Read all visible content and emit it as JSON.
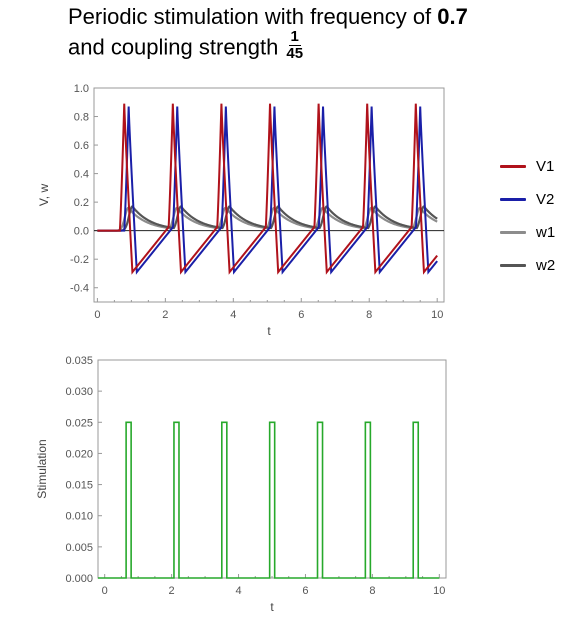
{
  "title": {
    "line1_prefix": "Periodic stimulation with frequency of",
    "line1_value": "0.7",
    "line2_prefix": "and coupling strength",
    "frac_num": "1",
    "frac_den": "45"
  },
  "colors": {
    "V1": "#b0121b",
    "V2": "#1a1fa8",
    "w1": "#8c8c8c",
    "w2": "#555555",
    "stim": "#27a92b"
  },
  "legend": [
    {
      "name": "V1",
      "color": "#b0121b"
    },
    {
      "name": "V2",
      "color": "#1a1fa8"
    },
    {
      "name": "w1",
      "color": "#8c8c8c"
    },
    {
      "name": "w2",
      "color": "#555555"
    }
  ],
  "chart_data": [
    {
      "type": "line",
      "xlabel": "t",
      "ylabel": "V, w",
      "xlim": [
        -0.1,
        10.2
      ],
      "ylim": [
        -0.5,
        1.0
      ],
      "xticks": [
        0,
        2,
        4,
        6,
        8,
        10
      ],
      "yticks": [
        -0.4,
        -0.2,
        0.0,
        0.2,
        0.4,
        0.6,
        0.8,
        1.0
      ],
      "ytick_labels": [
        "-0.4",
        "-0.2",
        "0.0",
        "0.2",
        "0.4",
        "0.6",
        "0.8",
        "1.0"
      ],
      "spike_times": [
        0.71,
        2.14,
        3.57,
        5.0,
        6.43,
        7.86,
        9.29
      ],
      "series": [
        {
          "name": "V1",
          "peak": 0.89,
          "trough": -0.29,
          "rest": 0.0
        },
        {
          "name": "V2",
          "peak": 0.87,
          "trough": -0.29,
          "rest": 0.0
        },
        {
          "name": "w1",
          "peak": 0.16,
          "trough": 0.0
        },
        {
          "name": "w2",
          "peak": 0.17,
          "trough": 0.0
        }
      ],
      "zero_line": true
    },
    {
      "type": "line",
      "xlabel": "t",
      "ylabel": "Stimulation",
      "xlim": [
        -0.2,
        10.2
      ],
      "ylim": [
        0.0,
        0.035
      ],
      "xticks": [
        0,
        2,
        4,
        6,
        8,
        10
      ],
      "yticks": [
        0.0,
        0.005,
        0.01,
        0.015,
        0.02,
        0.025,
        0.03,
        0.035
      ],
      "ytick_labels": [
        "0.000",
        "0.005",
        "0.010",
        "0.015",
        "0.020",
        "0.025",
        "0.030",
        "0.035"
      ],
      "pulse_starts": [
        0.64,
        2.07,
        3.5,
        4.93,
        6.36,
        7.79,
        9.22
      ],
      "pulse_width": 0.15,
      "amplitude": 0.025,
      "series": [
        {
          "name": "",
          "color": "#27a92b"
        }
      ]
    }
  ]
}
